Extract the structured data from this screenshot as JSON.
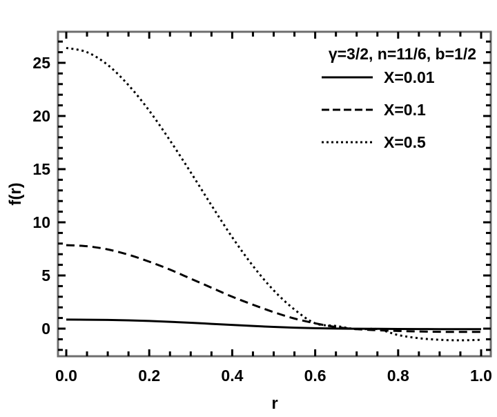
{
  "chart_data": {
    "type": "line",
    "title": "",
    "xlabel": "r",
    "ylabel": "f(r)",
    "xlim": [
      -0.02,
      1.02
    ],
    "ylim": [
      -2.6,
      27.7
    ],
    "xticks": [
      0.0,
      0.2,
      0.4,
      0.6,
      0.8,
      1.0
    ],
    "xtick_labels": [
      "0.0",
      "0.2",
      "0.4",
      "0.6",
      "0.8",
      "1.0"
    ],
    "yticks": [
      0,
      5,
      10,
      15,
      20,
      25
    ],
    "ytick_labels": [
      "0",
      "5",
      "10",
      "15",
      "20",
      "25"
    ],
    "grid": false,
    "legend_position": "upper right",
    "legend_title": "γ=3/2, n=11/6, b=1/2",
    "x": [
      0.0,
      0.05,
      0.1,
      0.15,
      0.2,
      0.25,
      0.3,
      0.35,
      0.4,
      0.45,
      0.5,
      0.55,
      0.6,
      0.65,
      0.7,
      0.75,
      0.8,
      0.85,
      0.9,
      0.95,
      1.0
    ],
    "series": [
      {
        "name": "X=0.01",
        "style": "solid",
        "values": [
          0.85,
          0.84,
          0.82,
          0.78,
          0.72,
          0.64,
          0.55,
          0.45,
          0.35,
          0.25,
          0.16,
          0.09,
          0.04,
          0.01,
          -0.01,
          -0.02,
          -0.03,
          -0.04,
          -0.05,
          -0.05,
          -0.05
        ]
      },
      {
        "name": "X=0.1",
        "style": "dashed",
        "values": [
          7.85,
          7.75,
          7.45,
          6.95,
          6.3,
          5.55,
          4.7,
          3.85,
          3.0,
          2.25,
          1.55,
          0.95,
          0.5,
          0.15,
          -0.05,
          -0.15,
          -0.22,
          -0.27,
          -0.3,
          -0.31,
          -0.31
        ]
      },
      {
        "name": "X=0.5",
        "style": "dotted",
        "values": [
          26.4,
          26.0,
          24.8,
          22.9,
          20.5,
          17.7,
          14.7,
          11.6,
          8.6,
          5.9,
          3.6,
          1.8,
          0.5,
          -0.3,
          -0.6,
          0.0,
          -0.6,
          -0.9,
          -1.05,
          -1.1,
          -1.05
        ]
      }
    ]
  }
}
